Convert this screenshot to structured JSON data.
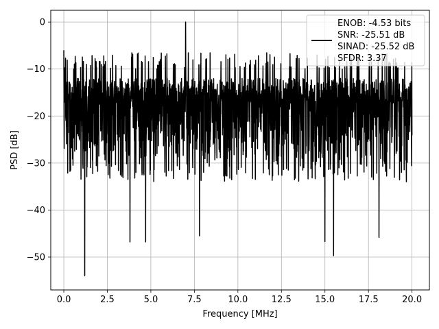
{
  "chart_data": {
    "type": "line",
    "title": "",
    "xlabel": "Frequency [MHz]",
    "ylabel": "PSD [dB]",
    "xlim": [
      -0.75,
      21.0
    ],
    "ylim": [
      -57,
      2.5
    ],
    "xticks": [
      0.0,
      2.5,
      5.0,
      7.5,
      10.0,
      12.5,
      15.0,
      17.5,
      20.0
    ],
    "xtick_labels": [
      "0.0",
      "2.5",
      "5.0",
      "7.5",
      "10.0",
      "12.5",
      "15.0",
      "17.5",
      "20.0"
    ],
    "yticks": [
      0,
      -10,
      -20,
      -30,
      -40,
      -50
    ],
    "ytick_labels": [
      "0",
      "−10",
      "−20",
      "−30",
      "−40",
      "−50"
    ],
    "grid": true,
    "legend_position": "top-right",
    "legend_lines": [
      "ENOB: -4.53 bits",
      "SNR: -25.51 dB",
      "SINAD: -25.52 dB",
      "SFDR: 3.37"
    ],
    "series": [
      {
        "color": "#000000",
        "n_points": 2048,
        "x_range": [
          0.0,
          20.0
        ],
        "baseline_db": -20,
        "max_db": 0.0,
        "peak_at_mhz": 7.0,
        "min_db": -54.0,
        "min_at_mhz": 1.2,
        "notable_points": [
          {
            "x": 0.0,
            "y": -6.0
          },
          {
            "x": 1.2,
            "y": -54.0
          },
          {
            "x": 3.8,
            "y": -46.8
          },
          {
            "x": 4.7,
            "y": -46.8
          },
          {
            "x": 7.0,
            "y": 0.0
          },
          {
            "x": 7.8,
            "y": -45.5
          },
          {
            "x": 15.0,
            "y": -46.7
          },
          {
            "x": 15.5,
            "y": -49.7
          },
          {
            "x": 18.1,
            "y": -45.8
          }
        ]
      }
    ]
  }
}
